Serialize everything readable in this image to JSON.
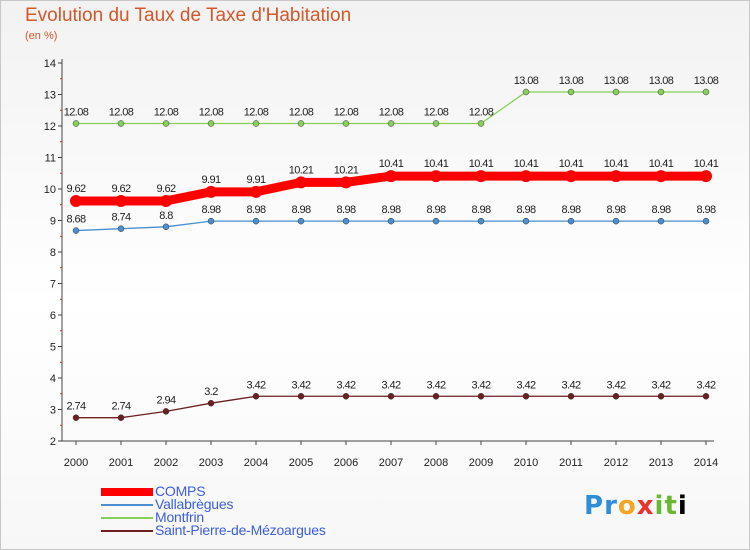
{
  "header": {
    "title": "Evolution du Taux de Taxe d'Habitation",
    "subtitle": "(en %)"
  },
  "chart_data": {
    "type": "line",
    "title": "Evolution du Taux de Taxe d'Habitation",
    "ylabel": "(en %)",
    "x": [
      "2000",
      "2001",
      "2002",
      "2003",
      "2004",
      "2005",
      "2006",
      "2007",
      "2008",
      "2009",
      "2010",
      "2011",
      "2012",
      "2013",
      "2014"
    ],
    "ylim": [
      2,
      14
    ],
    "yticks": [
      "2",
      "3",
      "4",
      "5",
      "6",
      "7",
      "8",
      "9",
      "10",
      "11",
      "12",
      "13",
      "14"
    ],
    "grid": false,
    "legend_position": "bottom-left",
    "series": [
      {
        "name": "COMPS",
        "color": "#ff0000",
        "values": [
          9.62,
          9.62,
          9.62,
          9.91,
          9.91,
          10.21,
          10.21,
          10.41,
          10.41,
          10.41,
          10.41,
          10.41,
          10.41,
          10.41,
          10.41
        ],
        "labels": [
          "9.62",
          "9.62",
          "9.62",
          "9.91",
          "9.91",
          "10.21",
          "10.21",
          "10.41",
          "10.41",
          "10.41",
          "10.41",
          "10.41",
          "10.41",
          "10.41",
          "10.41"
        ]
      },
      {
        "name": "Vallabrègues",
        "color": "#4a8fcf",
        "values": [
          8.68,
          8.74,
          8.8,
          8.98,
          8.98,
          8.98,
          8.98,
          8.98,
          8.98,
          8.98,
          8.98,
          8.98,
          8.98,
          8.98,
          8.98
        ],
        "labels": [
          "8.68",
          "8.74",
          "8.8",
          "8.98",
          "8.98",
          "8.98",
          "8.98",
          "8.98",
          "8.98",
          "8.98",
          "8.98",
          "8.98",
          "8.98",
          "8.98",
          "8.98"
        ]
      },
      {
        "name": "Montfrin",
        "color": "#86d05a",
        "values": [
          12.08,
          12.08,
          12.08,
          12.08,
          12.08,
          12.08,
          12.08,
          12.08,
          12.08,
          12.08,
          13.08,
          13.08,
          13.08,
          13.08,
          13.08
        ],
        "labels": [
          "12.08",
          "12.08",
          "12.08",
          "12.08",
          "12.08",
          "12.08",
          "12.08",
          "12.08",
          "12.08",
          "12.08",
          "13.08",
          "13.08",
          "13.08",
          "13.08",
          "13.08"
        ]
      },
      {
        "name": "Saint-Pierre-de-Mézoargues",
        "color": "#6b1f1f",
        "values": [
          2.74,
          2.74,
          2.94,
          3.2,
          3.42,
          3.42,
          3.42,
          3.42,
          3.42,
          3.42,
          3.42,
          3.42,
          3.42,
          3.42,
          3.42
        ],
        "labels": [
          "2.74",
          "2.74",
          "2.94",
          "3.2",
          "3.42",
          "3.42",
          "3.42",
          "3.42",
          "3.42",
          "3.42",
          "3.42",
          "3.42",
          "3.42",
          "3.42",
          "3.42"
        ]
      }
    ]
  },
  "logo": {
    "letters": [
      "P",
      "r",
      "o",
      "x",
      "i",
      "t",
      "i"
    ]
  }
}
